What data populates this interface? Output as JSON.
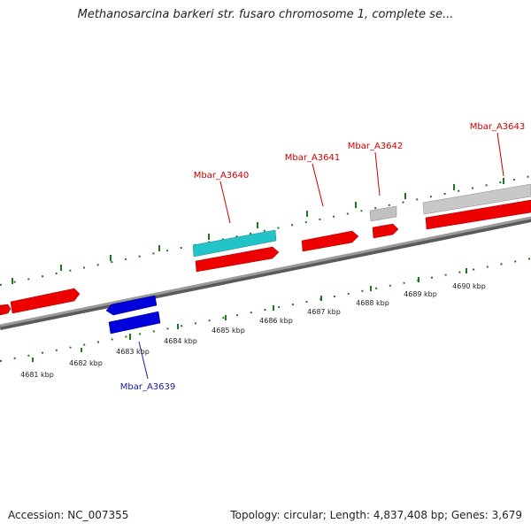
{
  "title": "Methanosarcina barkeri str. fusaro chromosome 1, complete se...",
  "footer": {
    "accession": "Accession: NC_007355",
    "summary": "Topology: circular; Length: 4,837,408 bp; Genes: 3,679"
  },
  "colors": {
    "forward_gene": "#ee0000",
    "reverse_gene": "#0000dd",
    "cyan_feature": "#22c4c8",
    "gray_feature": "#c0c0c0",
    "backbone": "#8a8a8a",
    "ruler_ticks": "#1a7a1a",
    "forward_label": "#cc0000",
    "reverse_label": "#1a1aa8"
  },
  "gene_labels": [
    {
      "id": "Mbar_A3639",
      "strand": "reverse"
    },
    {
      "id": "Mbar_A3640",
      "strand": "forward"
    },
    {
      "id": "Mbar_A3641",
      "strand": "forward"
    },
    {
      "id": "Mbar_A3642",
      "strand": "forward"
    },
    {
      "id": "Mbar_A3643",
      "strand": "forward"
    }
  ],
  "ruler_labels": [
    "4681 kbp",
    "4682 kbp",
    "4683 kbp",
    "4684 kbp",
    "4685 kbp",
    "4686 kbp",
    "4687 kbp",
    "4688 kbp",
    "4689 kbp",
    "4690 kbp"
  ]
}
